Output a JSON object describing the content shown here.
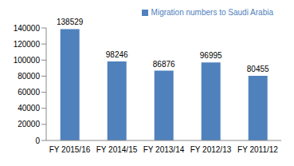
{
  "chart_data": {
    "type": "bar",
    "categories": [
      "FY 2015/16",
      "FY 2014/15",
      "FY 2013/14",
      "FY 2012/13",
      "FY 2011/12"
    ],
    "series": [
      {
        "name": "Migration numbers to Saudi Arabia",
        "color": "#4f81bd",
        "values": [
          138529,
          98246,
          86876,
          96995,
          80455
        ]
      }
    ],
    "ylim": [
      0,
      140000
    ],
    "yticks": [
      0,
      20000,
      40000,
      60000,
      80000,
      100000,
      120000,
      140000
    ],
    "grid": false,
    "legend": "upper right",
    "data_labels": true
  }
}
